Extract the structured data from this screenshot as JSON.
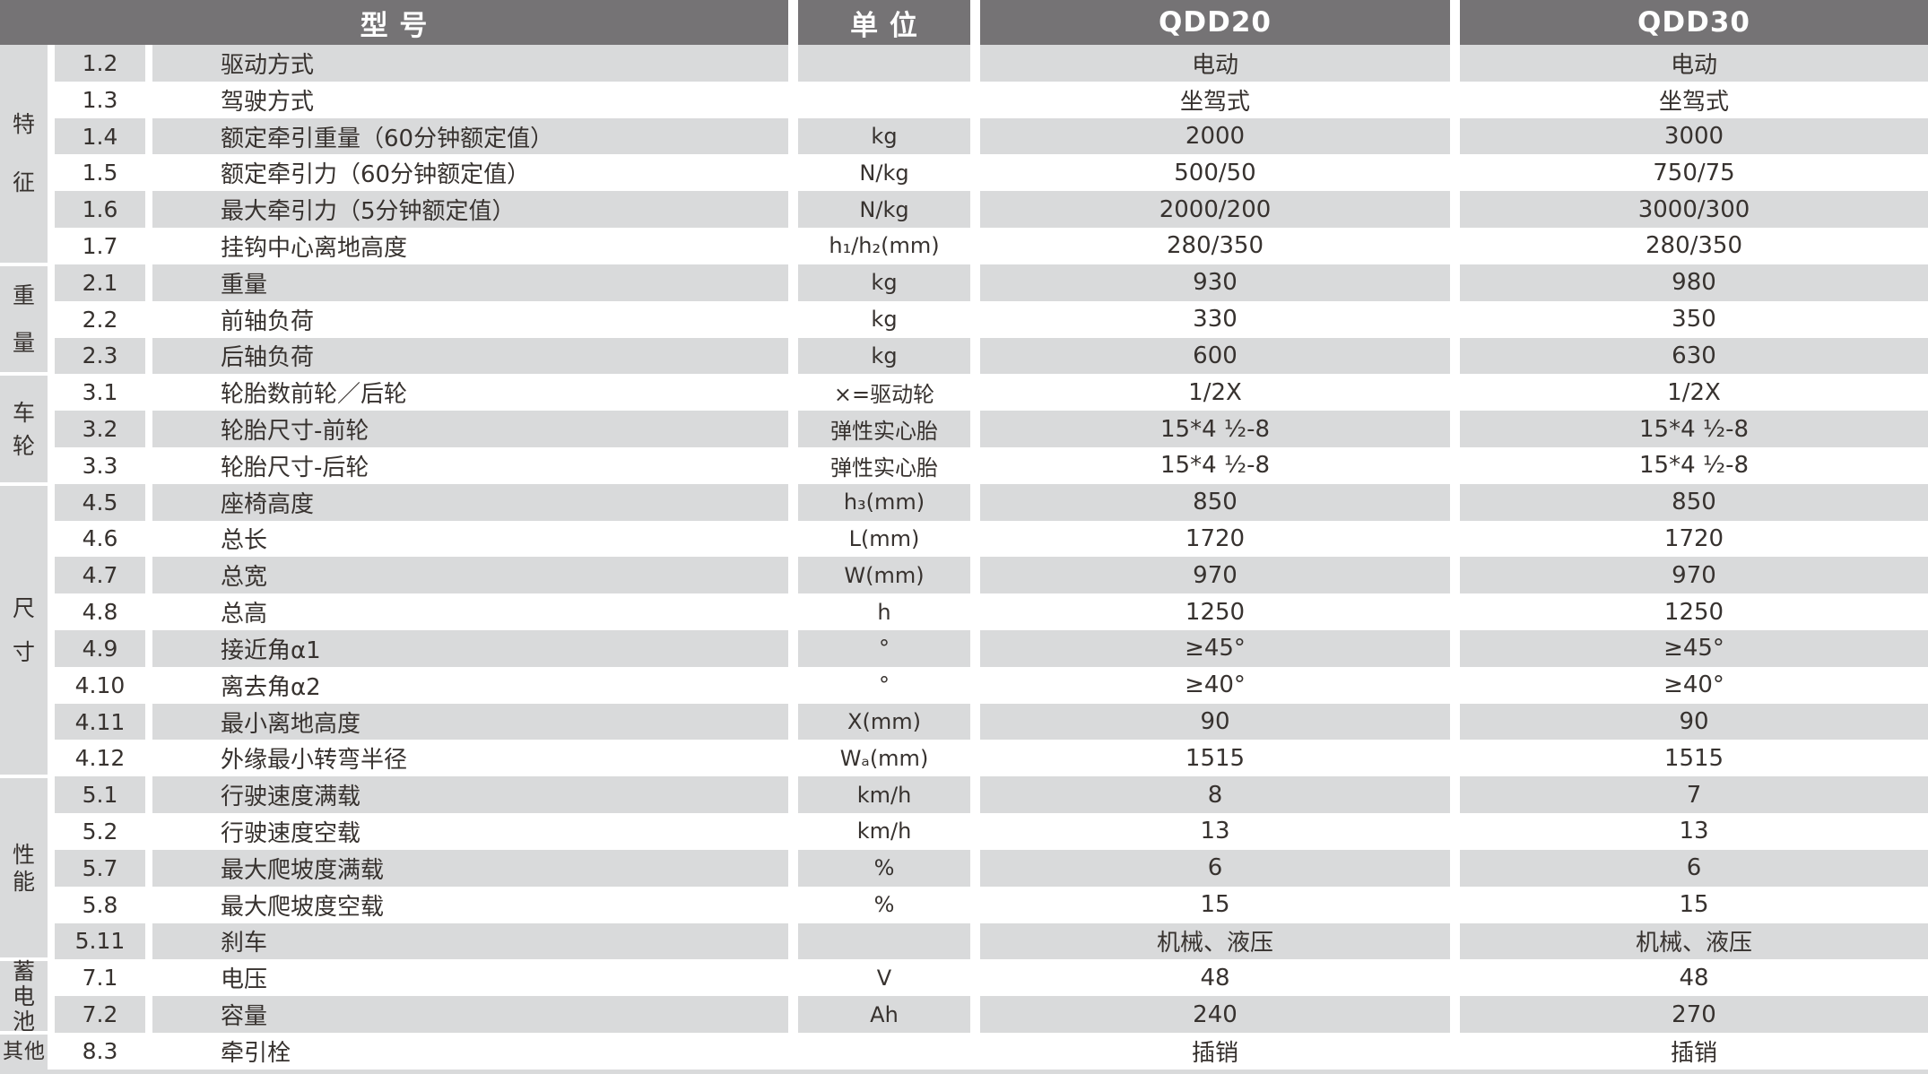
{
  "table": {
    "headers": {
      "model": "型 号",
      "unit": "单 位",
      "qdd20": "QDD20",
      "qdd30": "QDD30"
    },
    "colors": {
      "header_bg": "#757375",
      "band_gray": "#d9dadb",
      "text": "#37322f",
      "header_text": "#ffffff"
    },
    "groups": [
      {
        "label": "特征",
        "rows": [
          {
            "no": "1.2",
            "name": "驱动方式",
            "unit": "",
            "qdd20": "电动",
            "qdd30": "电动"
          },
          {
            "no": "1.3",
            "name": "驾驶方式",
            "unit": "",
            "qdd20": "坐驾式",
            "qdd30": "坐驾式"
          },
          {
            "no": "1.4",
            "name": "额定牵引重量（60分钟额定值）",
            "unit": "kg",
            "qdd20": "2000",
            "qdd30": "3000"
          },
          {
            "no": "1.5",
            "name": "额定牵引力（60分钟额定值）",
            "unit": "N/kg",
            "qdd20": "500/50",
            "qdd30": "750/75"
          },
          {
            "no": "1.6",
            "name": "最大牵引力（5分钟额定值）",
            "unit": "N/kg",
            "qdd20": "2000/200",
            "qdd30": "3000/300"
          },
          {
            "no": "1.7",
            "name": "挂钩中心离地高度",
            "unit": "h₁/h₂(mm)",
            "qdd20": "280/350",
            "qdd30": "280/350"
          }
        ]
      },
      {
        "label": "重量",
        "rows": [
          {
            "no": "2.1",
            "name": "重量",
            "unit": "kg",
            "qdd20": "930",
            "qdd30": "980"
          },
          {
            "no": "2.2",
            "name": "前轴负荷",
            "unit": "kg",
            "qdd20": "330",
            "qdd30": "350"
          },
          {
            "no": "2.3",
            "name": "后轴负荷",
            "unit": "kg",
            "qdd20": "600",
            "qdd30": "630"
          }
        ]
      },
      {
        "label": "车轮",
        "rows": [
          {
            "no": "3.1",
            "name": "轮胎数前轮／后轮",
            "unit": "×=驱动轮",
            "qdd20": "1/2X",
            "qdd30": "1/2X"
          },
          {
            "no": "3.2",
            "name": "轮胎尺寸-前轮",
            "unit": "弹性实心胎",
            "qdd20": "15*4 ½-8",
            "qdd30": "15*4 ½-8"
          },
          {
            "no": "3.3",
            "name": "轮胎尺寸-后轮",
            "unit": "弹性实心胎",
            "qdd20": "15*4 ½-8",
            "qdd30": "15*4 ½-8"
          }
        ]
      },
      {
        "label": "尺寸",
        "rows": [
          {
            "no": "4.5",
            "name": "座椅高度",
            "unit": "h₃(mm)",
            "qdd20": "850",
            "qdd30": "850"
          },
          {
            "no": "4.6",
            "name": "总长",
            "unit": "L(mm)",
            "qdd20": "1720",
            "qdd30": "1720"
          },
          {
            "no": "4.7",
            "name": "总宽",
            "unit": "W(mm)",
            "qdd20": "970",
            "qdd30": "970"
          },
          {
            "no": "4.8",
            "name": "总高",
            "unit": "h",
            "qdd20": "1250",
            "qdd30": "1250"
          },
          {
            "no": "4.9",
            "name": "接近角α1",
            "unit": "°",
            "qdd20": "≥45°",
            "qdd30": "≥45°"
          },
          {
            "no": "4.10",
            "name": "离去角α2",
            "unit": "°",
            "qdd20": "≥40°",
            "qdd30": "≥40°"
          },
          {
            "no": "4.11",
            "name": "最小离地高度",
            "unit": "X(mm)",
            "qdd20": "90",
            "qdd30": "90"
          },
          {
            "no": "4.12",
            "name": "外缘最小转弯半径",
            "unit": "Wₐ(mm)",
            "qdd20": "1515",
            "qdd30": "1515"
          }
        ]
      },
      {
        "label": "性能",
        "rows": [
          {
            "no": "5.1",
            "name": "行驶速度满载",
            "unit": "km/h",
            "qdd20": "8",
            "qdd30": "7"
          },
          {
            "no": "5.2",
            "name": "行驶速度空载",
            "unit": "km/h",
            "qdd20": "13",
            "qdd30": "13"
          },
          {
            "no": "5.7",
            "name": "最大爬坡度满载",
            "unit": "%",
            "qdd20": "6",
            "qdd30": "6"
          },
          {
            "no": "5.8",
            "name": "最大爬坡度空载",
            "unit": "%",
            "qdd20": "15",
            "qdd30": "15"
          },
          {
            "no": "5.11",
            "name": "刹车",
            "unit": "",
            "qdd20": "机械、液压",
            "qdd30": "机械、液压"
          }
        ]
      },
      {
        "label": "蓄电池",
        "rows": [
          {
            "no": "7.1",
            "name": "电压",
            "unit": "V",
            "qdd20": "48",
            "qdd30": "48"
          },
          {
            "no": "7.2",
            "name": "容量",
            "unit": "Ah",
            "qdd20": "240",
            "qdd30": "270"
          }
        ]
      },
      {
        "label": "其他",
        "horizontal": true,
        "rows": [
          {
            "no": "8.3",
            "name": "牵引栓",
            "unit": "",
            "qdd20": "插销",
            "qdd30": "插销"
          }
        ]
      }
    ]
  }
}
